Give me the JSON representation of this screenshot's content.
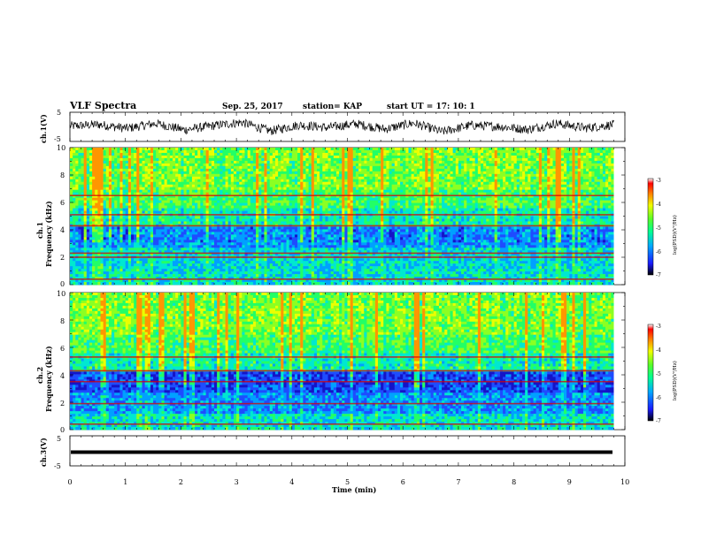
{
  "figure": {
    "title": "VLF Spectra",
    "date": "Sep. 25, 2017",
    "station": "station= KAP",
    "start": "start  UT =   17: 10: 1"
  },
  "chart_data": [
    {
      "type": "line",
      "name": "ch1-waveform",
      "ylabel": "ch.1(V)",
      "xlim": [
        0,
        10
      ],
      "ylim": [
        -5,
        5
      ],
      "yticks": [
        "5",
        "-5"
      ],
      "series": [
        {
          "x_range": [
            0,
            9.8
          ],
          "amplitude": [
            -1.6,
            1.6
          ],
          "description_values": [
            0.2,
            0.6,
            -0.4,
            0.9,
            -0.8,
            0.3,
            1.2,
            -1.1,
            0.5,
            -0.2,
            0.8,
            -0.6,
            1.0,
            -1.3,
            0.4,
            0.1,
            -0.7,
            0.9,
            -0.3,
            0.6
          ]
        }
      ]
    },
    {
      "type": "heatmap",
      "name": "ch1-spectrogram",
      "ylabel_line1": "ch.1",
      "ylabel_line2": "Frequency  (kHz)",
      "xlim": [
        0,
        9.8
      ],
      "ylim": [
        0,
        10
      ],
      "yticks": [
        "0",
        "2",
        "4",
        "6",
        "8",
        "10"
      ],
      "colorbar": {
        "label": "log(PSD)(V²/Hz)",
        "range": [
          -7,
          -3
        ],
        "ticks": [
          "-3",
          "-4",
          "-5",
          "-6",
          "-7"
        ]
      },
      "bands_kHz": [
        6.5,
        5.1,
        4.3,
        2.3,
        2.0,
        0.4
      ]
    },
    {
      "type": "heatmap",
      "name": "ch2-spectrogram",
      "ylabel_line1": "ch.2",
      "ylabel_line2": "Frequency  (kHz)",
      "xlim": [
        0,
        9.8
      ],
      "ylim": [
        0,
        10
      ],
      "yticks": [
        "0",
        "2",
        "4",
        "6",
        "8",
        "10"
      ],
      "colorbar": {
        "label": "log(PSD)(V²/Hz)",
        "range": [
          -7,
          -3
        ],
        "ticks": [
          "-3",
          "-4",
          "-5",
          "-6",
          "-7"
        ]
      },
      "bands_kHz": [
        5.3,
        4.3,
        3.5,
        1.9,
        0.4
      ]
    },
    {
      "type": "line",
      "name": "ch3-waveform",
      "ylabel": "ch.3(V)",
      "xlabel": "Time  (min)",
      "xlim": [
        0,
        10
      ],
      "ylim": [
        -5,
        5
      ],
      "yticks": [
        "5",
        "-5"
      ],
      "xticks": [
        "0",
        "1",
        "2",
        "3",
        "4",
        "5",
        "6",
        "7",
        "8",
        "9",
        "10"
      ],
      "series": [
        {
          "x_range": [
            0,
            9.8
          ],
          "constant": -1.5
        }
      ]
    }
  ]
}
